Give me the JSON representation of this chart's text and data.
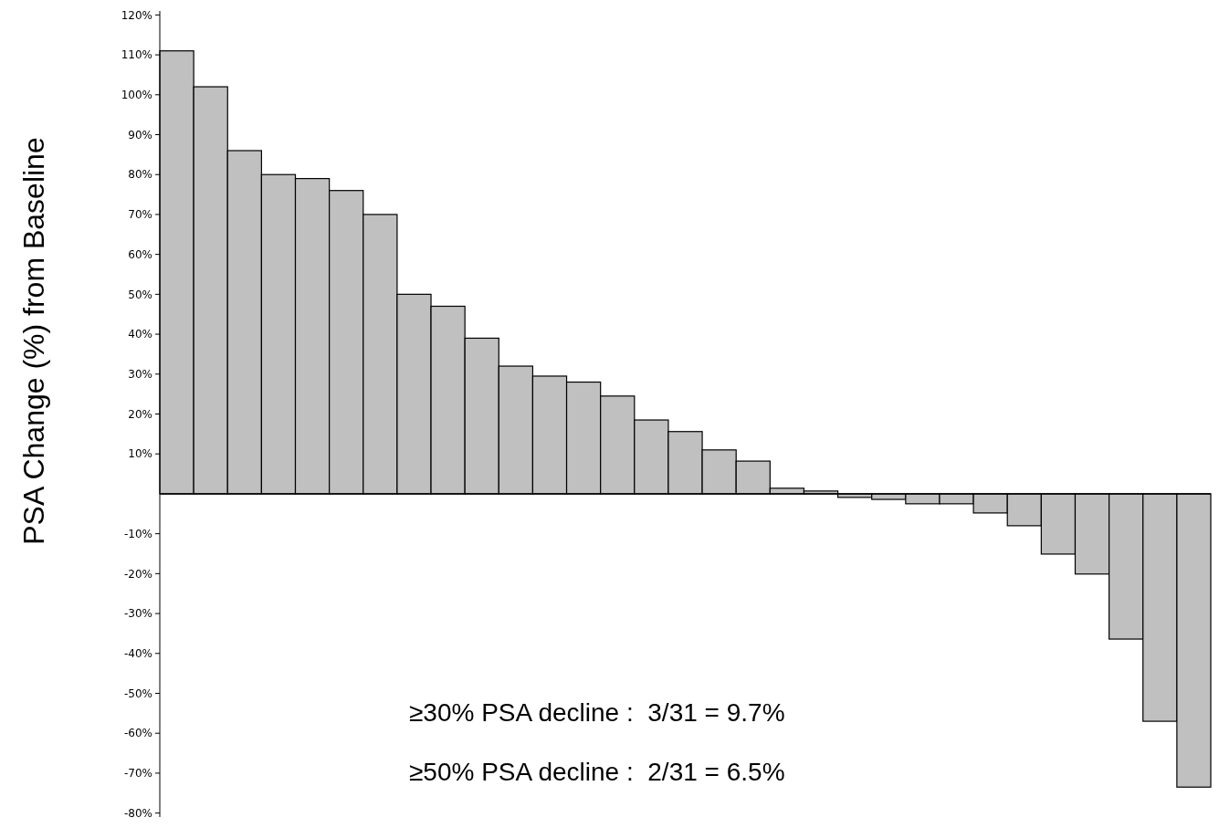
{
  "chart_data": {
    "type": "bar",
    "ylabel": "PSA Change (%) from Baseline",
    "categories": [
      null,
      null,
      null,
      null,
      null,
      null,
      null,
      null,
      null,
      null,
      null,
      null,
      null,
      null,
      null,
      null,
      null,
      null,
      null,
      null,
      null,
      null,
      null,
      null,
      null,
      null,
      null,
      null,
      null,
      null,
      null
    ],
    "values": [
      111,
      102,
      86,
      80,
      79,
      76,
      70,
      50,
      47,
      39,
      32,
      29.5,
      28,
      24.5,
      18.5,
      15.6,
      11,
      8.2,
      1.4,
      0.7,
      -0.9,
      -1.4,
      -2.5,
      -2.5,
      -4.8,
      -8,
      -15.1,
      -20.1,
      -36.4,
      -57,
      -73.5
    ],
    "color": "#c0c0c0",
    "ylim": [
      -81,
      121
    ],
    "yticks": [
      {
        "value": -80,
        "label": "-80%"
      },
      {
        "value": -70,
        "label": "-70%"
      },
      {
        "value": -60,
        "label": "-60%"
      },
      {
        "value": -50,
        "label": "-50%"
      },
      {
        "value": -40,
        "label": "-40%"
      },
      {
        "value": -30,
        "label": "-30%"
      },
      {
        "value": -20,
        "label": "-20%"
      },
      {
        "value": -10,
        "label": "-10%"
      },
      {
        "value": 10,
        "label": "10%"
      },
      {
        "value": 20,
        "label": "20%"
      },
      {
        "value": 30,
        "label": "30%"
      },
      {
        "value": 40,
        "label": "40%"
      },
      {
        "value": 50,
        "label": "50%"
      },
      {
        "value": 60,
        "label": "60%"
      },
      {
        "value": 70,
        "label": "70%"
      },
      {
        "value": 80,
        "label": "80%"
      },
      {
        "value": 90,
        "label": "90%"
      },
      {
        "value": 100,
        "label": "100%"
      },
      {
        "value": 110,
        "label": "110%"
      },
      {
        "value": 120,
        "label": "120%"
      }
    ],
    "annotations": [
      "≥30% PSA decline :  3/31 = 9.7%",
      "≥50% PSA decline :  2/31 = 6.5%"
    ]
  }
}
